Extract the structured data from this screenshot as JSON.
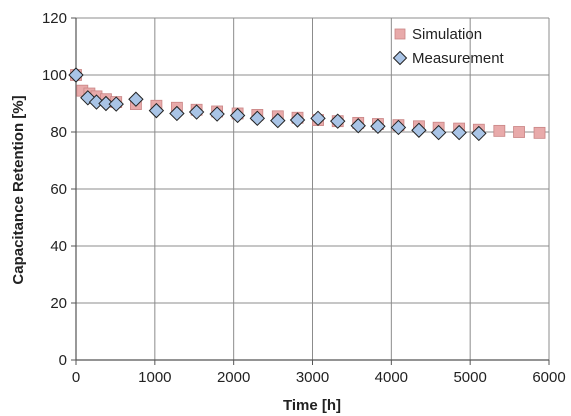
{
  "chart_data": {
    "type": "scatter",
    "title": "",
    "xlabel": "Time [h]",
    "ylabel": "Capacitance Retention [%]",
    "xlim": [
      0,
      6000
    ],
    "ylim": [
      0,
      120
    ],
    "xticks": [
      0,
      1000,
      2000,
      3000,
      4000,
      5000,
      6000
    ],
    "yticks": [
      0,
      20,
      40,
      60,
      80,
      100,
      120
    ],
    "grid": true,
    "legend_position": "top-right",
    "series": [
      {
        "name": "Simulation",
        "marker": "square",
        "color": "#e8aaaa",
        "stroke": "#c98585",
        "x": [
          0,
          80,
          170,
          260,
          380,
          510,
          760,
          1020,
          1280,
          1530,
          1790,
          2050,
          2300,
          2560,
          2810,
          3070,
          3320,
          3580,
          3830,
          4090,
          4350,
          4600,
          4860,
          5110,
          5370,
          5620,
          5880
        ],
        "y": [
          100,
          94.5,
          93.5,
          92.5,
          91.5,
          90.5,
          89.8,
          89.2,
          88.5,
          87.8,
          87.2,
          86.5,
          86,
          85.5,
          85,
          84.2,
          83.8,
          83.2,
          82.8,
          82.4,
          82,
          81.5,
          81.2,
          80.8,
          80.4,
          80,
          79.7
        ]
      },
      {
        "name": "Measurement",
        "marker": "diamond",
        "color": "#a9c4e6",
        "stroke": "#222222",
        "x": [
          0,
          150,
          260,
          380,
          510,
          760,
          1020,
          1280,
          1530,
          1790,
          2050,
          2300,
          2560,
          2810,
          3070,
          3320,
          3580,
          3830,
          4090,
          4350,
          4600,
          4860,
          5110
        ],
        "y": [
          100,
          92,
          90.5,
          90,
          89.8,
          91.5,
          87.5,
          86.5,
          87,
          86.3,
          85.8,
          84.8,
          84,
          84.2,
          84.8,
          83.8,
          82.2,
          82,
          81.6,
          80.6,
          79.8,
          79.8,
          79.5
        ]
      }
    ]
  }
}
